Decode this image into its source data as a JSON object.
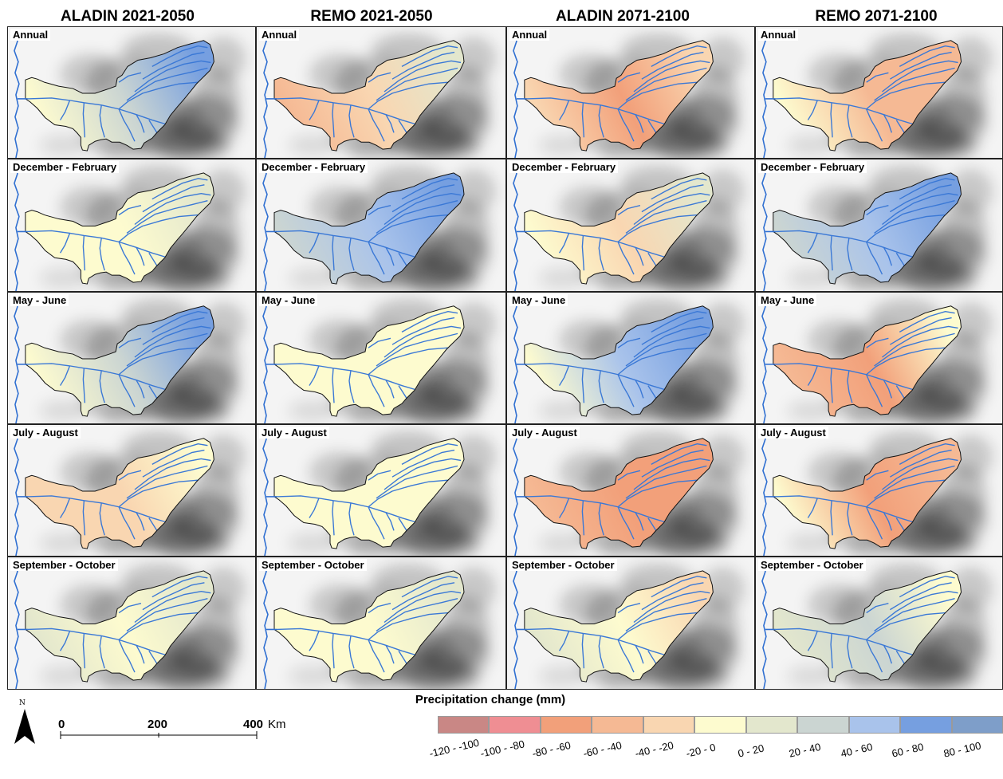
{
  "columns": [
    "ALADIN 2021-2050",
    "REMO 2021-2050",
    "ALADIN 2071-2100",
    "REMO 2071-2100"
  ],
  "seasons": [
    "Annual",
    "December - February",
    "May - June",
    "July - August",
    "September - October"
  ],
  "legend": {
    "title": "Precipitation change (mm)",
    "classes": [
      {
        "label": "-120 - -100",
        "color": "#c98785"
      },
      {
        "label": "-100 - -80",
        "color": "#ef8e93"
      },
      {
        "label": "-80 - -60",
        "color": "#f2a07a"
      },
      {
        "label": "-60 - -40",
        "color": "#f5b994"
      },
      {
        "label": "-40 - -20",
        "color": "#f9d6b1"
      },
      {
        "label": "-20 - 0",
        "color": "#fdfbcf"
      },
      {
        "label": "0 - 20",
        "color": "#e3e7cd"
      },
      {
        "label": "20 - 40",
        "color": "#cbd5d2"
      },
      {
        "label": "40 - 60",
        "color": "#a9c3eb"
      },
      {
        "label": "60 - 80",
        "color": "#769fe0"
      },
      {
        "label": "80 - 100",
        "color": "#7e9ec9"
      }
    ]
  },
  "north_arrow": {
    "letter": "N"
  },
  "scale_bar": {
    "labels": [
      "0",
      "200",
      "400"
    ],
    "unit": "Km"
  },
  "panels": [
    [
      {
        "season": "Annual",
        "west": 5,
        "center": 7,
        "east": 9
      },
      {
        "season": "Annual",
        "west": 3,
        "center": 4,
        "east": 6
      },
      {
        "season": "Annual",
        "west": 4,
        "center": 2,
        "east": 4
      },
      {
        "season": "Annual",
        "west": 5,
        "center": 3,
        "east": 3
      }
    ],
    [
      {
        "season": "December - February",
        "west": 5,
        "center": 5,
        "east": 6
      },
      {
        "season": "December - February",
        "west": 7,
        "center": 8,
        "east": 9
      },
      {
        "season": "December - February",
        "west": 5,
        "center": 4,
        "east": 6
      },
      {
        "season": "December - February",
        "west": 7,
        "center": 8,
        "east": 9
      }
    ],
    [
      {
        "season": "May - June",
        "west": 5,
        "center": 7,
        "east": 9
      },
      {
        "season": "May - June",
        "west": 5,
        "center": 5,
        "east": 5
      },
      {
        "season": "May - June",
        "west": 5,
        "center": 8,
        "east": 9
      },
      {
        "season": "May - June",
        "west": 3,
        "center": 2,
        "east": 5
      }
    ],
    [
      {
        "season": "July - August",
        "west": 4,
        "center": 4,
        "east": 5
      },
      {
        "season": "July - August",
        "west": 5,
        "center": 5,
        "east": 5
      },
      {
        "season": "July - August",
        "west": 3,
        "center": 2,
        "east": 2
      },
      {
        "season": "July - August",
        "west": 5,
        "center": 2,
        "east": 3
      }
    ],
    [
      {
        "season": "September - October",
        "west": 6,
        "center": 5,
        "east": 6
      },
      {
        "season": "September - October",
        "west": 5,
        "center": 5,
        "east": 6
      },
      {
        "season": "September - October",
        "west": 6,
        "center": 5,
        "east": 4
      },
      {
        "season": "September - October",
        "west": 6,
        "center": 7,
        "east": 5
      }
    ]
  ]
}
